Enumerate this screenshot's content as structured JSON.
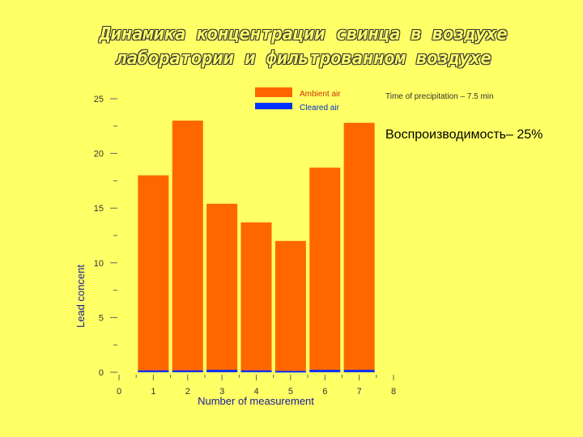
{
  "slide": {
    "title_line1": "Динамика концентрации свинца в воздухе",
    "title_line2": "лаборатории и фильтрованном воздухе",
    "note": "Time of precipitation – 7.5 min",
    "reproducibility": "Воспроизводимость– 25%"
  },
  "colors": {
    "background": "#ffff66",
    "ambient": "#ff6600",
    "cleared": "#0033ff",
    "axis_label": "#1a1a99"
  },
  "chart_data": {
    "type": "bar",
    "categories": [
      "1",
      "2",
      "3",
      "4",
      "5",
      "6",
      "7"
    ],
    "series": [
      {
        "name": "Ambient air",
        "values": [
          18.0,
          23.0,
          15.4,
          13.7,
          12.0,
          18.7,
          22.8
        ]
      },
      {
        "name": "Cleared air",
        "values": [
          0.1,
          0.1,
          0.15,
          0.1,
          0.05,
          0.15,
          0.15
        ]
      }
    ],
    "xlabel": "Number of measurement",
    "ylabel": "Lead concent",
    "xlim": [
      0,
      8
    ],
    "ylim": [
      0,
      25
    ],
    "xticks": [
      0,
      1,
      2,
      3,
      4,
      5,
      6,
      7,
      8
    ],
    "yticks": [
      0,
      5,
      10,
      15,
      20,
      25
    ],
    "legend_position": "top-center",
    "grid": false
  }
}
